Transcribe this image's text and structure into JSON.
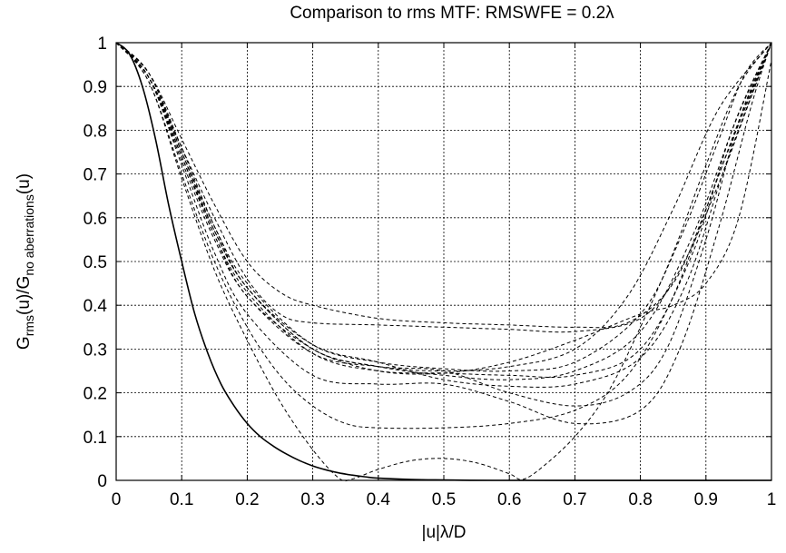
{
  "chart_data": {
    "type": "line",
    "title": "Comparison to rms MTF: RMSWFE = 0.2λ",
    "xlabel": "|u|λ/D",
    "ylabel": {
      "main": "G",
      "sub1": "rms",
      "mid": "(u)/G",
      "sub2": "no aberrations",
      "end": "(u)"
    },
    "xlim": [
      0,
      1
    ],
    "ylim": [
      0,
      1
    ],
    "xticks": [
      "0",
      "0.1",
      "0.2",
      "0.3",
      "0.4",
      "0.5",
      "0.6",
      "0.7",
      "0.8",
      "0.9",
      "1"
    ],
    "yticks": [
      "0",
      "0.1",
      "0.2",
      "0.3",
      "0.4",
      "0.5",
      "0.6",
      "0.7",
      "0.8",
      "0.9",
      "1"
    ],
    "grid": true,
    "line_color": "#000000",
    "solid_series": {
      "style": "solid",
      "points": [
        [
          0,
          1
        ],
        [
          0.02,
          0.975
        ],
        [
          0.04,
          0.9
        ],
        [
          0.06,
          0.78
        ],
        [
          0.08,
          0.63
        ],
        [
          0.1,
          0.5
        ],
        [
          0.12,
          0.38
        ],
        [
          0.14,
          0.29
        ],
        [
          0.16,
          0.22
        ],
        [
          0.18,
          0.17
        ],
        [
          0.2,
          0.13
        ],
        [
          0.22,
          0.1
        ],
        [
          0.24,
          0.078
        ],
        [
          0.26,
          0.06
        ],
        [
          0.28,
          0.045
        ],
        [
          0.3,
          0.033
        ],
        [
          0.32,
          0.024
        ],
        [
          0.34,
          0.017
        ],
        [
          0.36,
          0.012
        ],
        [
          0.38,
          0.008
        ],
        [
          0.4,
          0.005
        ],
        [
          0.45,
          0.002
        ],
        [
          0.5,
          0.001
        ],
        [
          0.6,
          0
        ],
        [
          1,
          0
        ]
      ]
    },
    "dashed_series": [
      {
        "points": [
          [
            0,
            1
          ],
          [
            0.05,
            0.93
          ],
          [
            0.1,
            0.78
          ],
          [
            0.15,
            0.63
          ],
          [
            0.2,
            0.5
          ],
          [
            0.25,
            0.43
          ],
          [
            0.3,
            0.4
          ],
          [
            0.4,
            0.37
          ],
          [
            0.5,
            0.36
          ],
          [
            0.6,
            0.355
          ],
          [
            0.7,
            0.35
          ],
          [
            0.78,
            0.36
          ],
          [
            0.85,
            0.45
          ],
          [
            0.9,
            0.62
          ],
          [
            0.95,
            0.82
          ],
          [
            1,
            1
          ]
        ]
      },
      {
        "points": [
          [
            0,
            1
          ],
          [
            0.05,
            0.92
          ],
          [
            0.1,
            0.76
          ],
          [
            0.15,
            0.6
          ],
          [
            0.2,
            0.46
          ],
          [
            0.25,
            0.38
          ],
          [
            0.3,
            0.36
          ],
          [
            0.4,
            0.355
          ],
          [
            0.5,
            0.35
          ],
          [
            0.6,
            0.345
          ],
          [
            0.7,
            0.34
          ],
          [
            0.8,
            0.37
          ],
          [
            0.86,
            0.48
          ],
          [
            0.92,
            0.68
          ],
          [
            0.97,
            0.88
          ],
          [
            1,
            1
          ]
        ]
      },
      {
        "points": [
          [
            0,
            1
          ],
          [
            0.05,
            0.92
          ],
          [
            0.1,
            0.75
          ],
          [
            0.15,
            0.58
          ],
          [
            0.2,
            0.45
          ],
          [
            0.3,
            0.31
          ],
          [
            0.4,
            0.27
          ],
          [
            0.5,
            0.255
          ],
          [
            0.6,
            0.25
          ],
          [
            0.7,
            0.27
          ],
          [
            0.8,
            0.38
          ],
          [
            0.86,
            0.55
          ],
          [
            0.92,
            0.78
          ],
          [
            0.96,
            0.93
          ],
          [
            1,
            1
          ]
        ]
      },
      {
        "points": [
          [
            0,
            1
          ],
          [
            0.05,
            0.92
          ],
          [
            0.1,
            0.74
          ],
          [
            0.15,
            0.57
          ],
          [
            0.2,
            0.44
          ],
          [
            0.3,
            0.3
          ],
          [
            0.4,
            0.26
          ],
          [
            0.5,
            0.25
          ],
          [
            0.6,
            0.26
          ],
          [
            0.7,
            0.3
          ],
          [
            0.78,
            0.42
          ],
          [
            0.85,
            0.62
          ],
          [
            0.92,
            0.85
          ],
          [
            1,
            1
          ]
        ]
      },
      {
        "points": [
          [
            0,
            1
          ],
          [
            0.05,
            0.92
          ],
          [
            0.1,
            0.74
          ],
          [
            0.15,
            0.56
          ],
          [
            0.2,
            0.43
          ],
          [
            0.3,
            0.29
          ],
          [
            0.4,
            0.25
          ],
          [
            0.5,
            0.245
          ],
          [
            0.6,
            0.24
          ],
          [
            0.7,
            0.24
          ],
          [
            0.8,
            0.3
          ],
          [
            0.88,
            0.52
          ],
          [
            0.94,
            0.8
          ],
          [
            1,
            1
          ]
        ]
      },
      {
        "points": [
          [
            0,
            1
          ],
          [
            0.05,
            0.93
          ],
          [
            0.1,
            0.75
          ],
          [
            0.15,
            0.57
          ],
          [
            0.2,
            0.44
          ],
          [
            0.3,
            0.3
          ],
          [
            0.4,
            0.26
          ],
          [
            0.5,
            0.24
          ],
          [
            0.6,
            0.23
          ],
          [
            0.7,
            0.25
          ],
          [
            0.8,
            0.34
          ],
          [
            0.88,
            0.56
          ],
          [
            0.95,
            0.84
          ],
          [
            1,
            1
          ]
        ]
      },
      {
        "points": [
          [
            0,
            1
          ],
          [
            0.05,
            0.93
          ],
          [
            0.1,
            0.76
          ],
          [
            0.15,
            0.58
          ],
          [
            0.2,
            0.44
          ],
          [
            0.3,
            0.31
          ],
          [
            0.4,
            0.27
          ],
          [
            0.5,
            0.23
          ],
          [
            0.6,
            0.215
          ],
          [
            0.7,
            0.22
          ],
          [
            0.8,
            0.28
          ],
          [
            0.87,
            0.45
          ],
          [
            0.93,
            0.72
          ],
          [
            1,
            1
          ]
        ]
      },
      {
        "points": [
          [
            0,
            1
          ],
          [
            0.05,
            0.92
          ],
          [
            0.1,
            0.73
          ],
          [
            0.15,
            0.55
          ],
          [
            0.2,
            0.42
          ],
          [
            0.3,
            0.29
          ],
          [
            0.4,
            0.26
          ],
          [
            0.5,
            0.25
          ],
          [
            0.6,
            0.2
          ],
          [
            0.7,
            0.17
          ],
          [
            0.78,
            0.2
          ],
          [
            0.84,
            0.3
          ],
          [
            0.9,
            0.55
          ],
          [
            0.95,
            0.82
          ],
          [
            1,
            1
          ]
        ]
      },
      {
        "points": [
          [
            0,
            1
          ],
          [
            0.05,
            0.92
          ],
          [
            0.1,
            0.72
          ],
          [
            0.15,
            0.52
          ],
          [
            0.2,
            0.38
          ],
          [
            0.3,
            0.24
          ],
          [
            0.4,
            0.22
          ],
          [
            0.5,
            0.22
          ],
          [
            0.6,
            0.18
          ],
          [
            0.7,
            0.13
          ],
          [
            0.8,
            0.16
          ],
          [
            0.86,
            0.3
          ],
          [
            0.92,
            0.58
          ],
          [
            0.97,
            0.86
          ],
          [
            1,
            1
          ]
        ]
      },
      {
        "points": [
          [
            0,
            1
          ],
          [
            0.05,
            0.91
          ],
          [
            0.1,
            0.7
          ],
          [
            0.15,
            0.5
          ],
          [
            0.2,
            0.35
          ],
          [
            0.25,
            0.24
          ],
          [
            0.3,
            0.17
          ],
          [
            0.35,
            0.13
          ],
          [
            0.4,
            0.12
          ],
          [
            0.5,
            0.12
          ],
          [
            0.6,
            0.13
          ],
          [
            0.7,
            0.16
          ],
          [
            0.78,
            0.24
          ],
          [
            0.85,
            0.42
          ],
          [
            0.92,
            0.7
          ],
          [
            1,
            1
          ]
        ]
      },
      {
        "points": [
          [
            0,
            1
          ],
          [
            0.05,
            0.91
          ],
          [
            0.1,
            0.69
          ],
          [
            0.15,
            0.48
          ],
          [
            0.2,
            0.32
          ],
          [
            0.25,
            0.18
          ],
          [
            0.3,
            0.07
          ],
          [
            0.34,
            0.005
          ],
          [
            0.36,
            0.003
          ],
          [
            0.4,
            0.025
          ],
          [
            0.45,
            0.045
          ],
          [
            0.5,
            0.05
          ],
          [
            0.55,
            0.04
          ],
          [
            0.6,
            0.015
          ],
          [
            0.62,
            0.002
          ],
          [
            0.65,
            0.03
          ],
          [
            0.7,
            0.1
          ],
          [
            0.75,
            0.2
          ],
          [
            0.8,
            0.35
          ],
          [
            0.85,
            0.52
          ],
          [
            0.9,
            0.72
          ],
          [
            0.95,
            0.9
          ],
          [
            1,
            1
          ]
        ]
      },
      {
        "points": [
          [
            0,
            1
          ],
          [
            0.05,
            0.92
          ],
          [
            0.1,
            0.74
          ],
          [
            0.15,
            0.56
          ],
          [
            0.2,
            0.42
          ],
          [
            0.3,
            0.3
          ],
          [
            0.4,
            0.25
          ],
          [
            0.5,
            0.245
          ],
          [
            0.6,
            0.27
          ],
          [
            0.7,
            0.32
          ],
          [
            0.8,
            0.38
          ],
          [
            0.85,
            0.4
          ],
          [
            0.9,
            0.45
          ],
          [
            0.95,
            0.6
          ],
          [
            1,
            0.96
          ]
        ]
      }
    ]
  }
}
